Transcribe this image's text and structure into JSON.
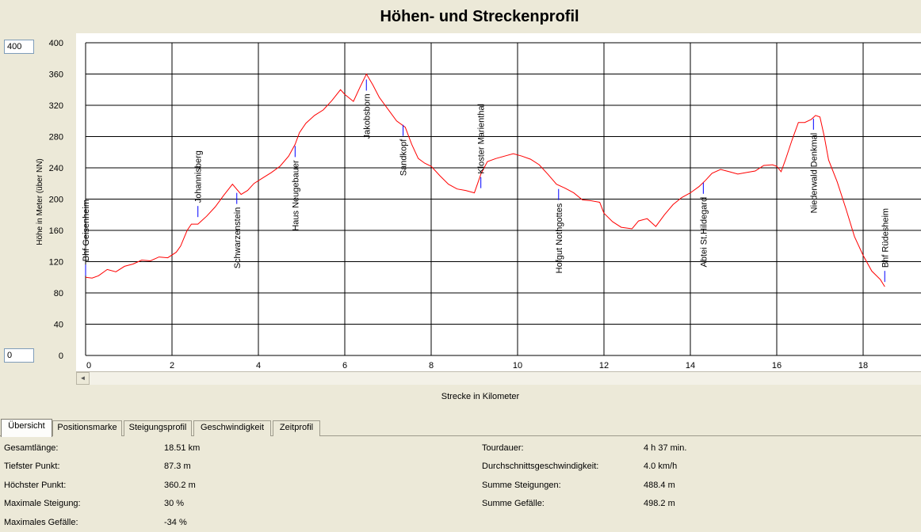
{
  "title": "Höhen- und Streckenprofil",
  "y_range_inputs": {
    "max": "400",
    "min": "0"
  },
  "chart_data": {
    "type": "line",
    "title": "Höhen- und Streckenprofil",
    "xlabel": "Strecke in Kilometer",
    "ylabel": "Höhe in Meter (über NN)",
    "xlim": [
      0,
      19.5
    ],
    "ylim": [
      0,
      400
    ],
    "grid": true,
    "x_ticks": [
      0,
      2,
      4,
      6,
      8,
      10,
      12,
      14,
      16,
      18
    ],
    "y_ticks": [
      400,
      360,
      320,
      280,
      240,
      200,
      160,
      120,
      80,
      40,
      0
    ],
    "color": "#ff0000",
    "series": [
      {
        "x": [
          0,
          0.15,
          0.3,
          0.5,
          0.7,
          0.9,
          1.1,
          1.3,
          1.5,
          1.7,
          1.9,
          2.1,
          2.2,
          2.35,
          2.45,
          2.6,
          2.8,
          3.0,
          3.2,
          3.4,
          3.6,
          3.75,
          3.9,
          4.1,
          4.3,
          4.5,
          4.7,
          4.85,
          4.95,
          5.1,
          5.3,
          5.5,
          5.7,
          5.9,
          6.0,
          6.2,
          6.35,
          6.5,
          6.65,
          6.8,
          7.0,
          7.2,
          7.4,
          7.55,
          7.7,
          7.85,
          8.0,
          8.2,
          8.4,
          8.6,
          8.8,
          9.0,
          9.15,
          9.3,
          9.5,
          9.7,
          9.9,
          10.1,
          10.3,
          10.5,
          10.7,
          10.9,
          11.1,
          11.3,
          11.5,
          11.7,
          11.9,
          12.0,
          12.2,
          12.4,
          12.65,
          12.8,
          13.0,
          13.2,
          13.4,
          13.6,
          13.8,
          14.0,
          14.2,
          14.35,
          14.5,
          14.7,
          14.9,
          15.1,
          15.3,
          15.5,
          15.7,
          15.9,
          16.0,
          16.1,
          16.2,
          16.35,
          16.5,
          16.65,
          16.8,
          16.9,
          17.0,
          17.1,
          17.2,
          17.4,
          17.6,
          17.8,
          18.0,
          18.2,
          18.4,
          18.5
        ],
        "y": [
          100,
          99,
          102,
          110,
          107,
          114,
          117,
          122,
          121,
          126,
          125,
          132,
          140,
          160,
          168,
          168,
          178,
          190,
          205,
          219,
          206,
          211,
          220,
          227,
          234,
          242,
          255,
          270,
          285,
          297,
          307,
          314,
          326,
          340,
          334,
          325,
          343,
          360,
          346,
          330,
          315,
          300,
          292,
          270,
          252,
          246,
          242,
          230,
          219,
          213,
          211,
          208,
          232,
          248,
          252,
          255,
          258,
          255,
          251,
          244,
          232,
          219,
          214,
          208,
          199,
          198,
          196,
          182,
          171,
          164,
          162,
          172,
          175,
          165,
          180,
          193,
          202,
          208,
          216,
          224,
          233,
          238,
          235,
          232,
          234,
          236,
          243,
          244,
          242,
          235,
          250,
          275,
          298,
          298,
          302,
          307,
          305,
          280,
          250,
          222,
          188,
          152,
          128,
          108,
          97,
          88
        ]
      }
    ],
    "annotations": [
      {
        "label": "Bhf Geisenheim",
        "x": 0.0,
        "y": 100,
        "side": "above"
      },
      {
        "label": "Johannisberg",
        "x": 2.6,
        "y": 175,
        "side": "above"
      },
      {
        "label": "Schwarzenstein",
        "x": 3.5,
        "y": 210,
        "side": "below"
      },
      {
        "label": "Haus  Neugebauer",
        "x": 4.85,
        "y": 270,
        "side": "below"
      },
      {
        "label": "Jakobsborn",
        "x": 6.5,
        "y": 355,
        "side": "below"
      },
      {
        "label": "Sandkopf",
        "x": 7.35,
        "y": 297,
        "side": "below"
      },
      {
        "label": "Kloster Marienthal",
        "x": 9.15,
        "y": 212,
        "side": "above"
      },
      {
        "label": "Hofgut  Nothgottes",
        "x": 10.95,
        "y": 215,
        "side": "below"
      },
      {
        "label": "Abtei St.Hildegard",
        "x": 14.3,
        "y": 223,
        "side": "below"
      },
      {
        "label": "Niederwald  Denkmal",
        "x": 16.85,
        "y": 305,
        "side": "below"
      },
      {
        "label": "Bhf Rüdesheim",
        "x": 18.5,
        "y": 92,
        "side": "above"
      }
    ]
  },
  "scrollbar": {
    "left_arrow": "◄"
  },
  "tabs": [
    {
      "label": "Übersicht",
      "active": true
    },
    {
      "label": "Positionsmarke",
      "active": false
    },
    {
      "label": "Steigungsprofil",
      "active": false
    },
    {
      "label": "Geschwindigkeit",
      "active": false
    },
    {
      "label": "Zeitprofil",
      "active": false
    }
  ],
  "stats_left": [
    {
      "label": "Gesamtlänge:",
      "value": "18.51 km"
    },
    {
      "label": "Tiefster Punkt:",
      "value": "87.3 m"
    },
    {
      "label": "Höchster Punkt:",
      "value": "360.2 m"
    },
    {
      "label": "Maximale Steigung:",
      "value": "30 %"
    },
    {
      "label": "Maximales Gefälle:",
      "value": "-34 %"
    }
  ],
  "stats_right": [
    {
      "label": "Tourdauer:",
      "value": "4 h 37 min."
    },
    {
      "label": "Durchschnittsgeschwindigkeit:",
      "value": "4.0 km/h"
    },
    {
      "label": "Summe Steigungen:",
      "value": "488.4 m"
    },
    {
      "label": "Summe Gefälle:",
      "value": "498.2 m"
    }
  ]
}
